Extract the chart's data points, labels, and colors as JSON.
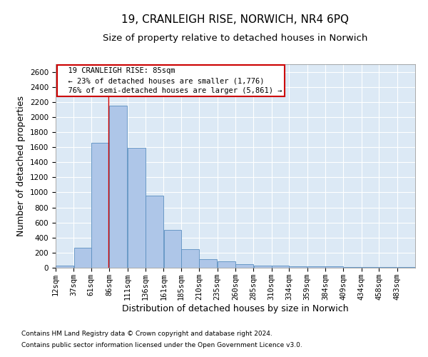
{
  "title1": "19, CRANLEIGH RISE, NORWICH, NR4 6PQ",
  "title2": "Size of property relative to detached houses in Norwich",
  "xlabel": "Distribution of detached houses by size in Norwich",
  "ylabel": "Number of detached properties",
  "footnote1": "Contains HM Land Registry data © Crown copyright and database right 2024.",
  "footnote2": "Contains public sector information licensed under the Open Government Licence v3.0.",
  "annotation_line1": "19 CRANLEIGH RISE: 85sqm",
  "annotation_line2": "← 23% of detached houses are smaller (1,776)",
  "annotation_line3": "76% of semi-detached houses are larger (5,861) →",
  "property_size": 85,
  "bar_edges": [
    12,
    37,
    61,
    86,
    111,
    136,
    161,
    185,
    210,
    235,
    260,
    285,
    310,
    334,
    359,
    384,
    409,
    434,
    458,
    483,
    508
  ],
  "bar_heights": [
    25,
    270,
    1660,
    2150,
    1590,
    960,
    500,
    245,
    115,
    90,
    45,
    30,
    25,
    20,
    20,
    15,
    5,
    5,
    5,
    5
  ],
  "bar_color": "#aec6e8",
  "bar_edgecolor": "#5a8fc0",
  "marker_color": "#cc0000",
  "ylim": [
    0,
    2700
  ],
  "yticks": [
    0,
    200,
    400,
    600,
    800,
    1000,
    1200,
    1400,
    1600,
    1800,
    2000,
    2200,
    2400,
    2600
  ],
  "bg_color": "#dce9f5",
  "annotation_box_color": "#cc0000",
  "title1_fontsize": 11,
  "title2_fontsize": 9.5,
  "axis_label_fontsize": 9,
  "tick_fontsize": 7.5,
  "footnote_fontsize": 6.5,
  "annotation_fontsize": 7.5
}
